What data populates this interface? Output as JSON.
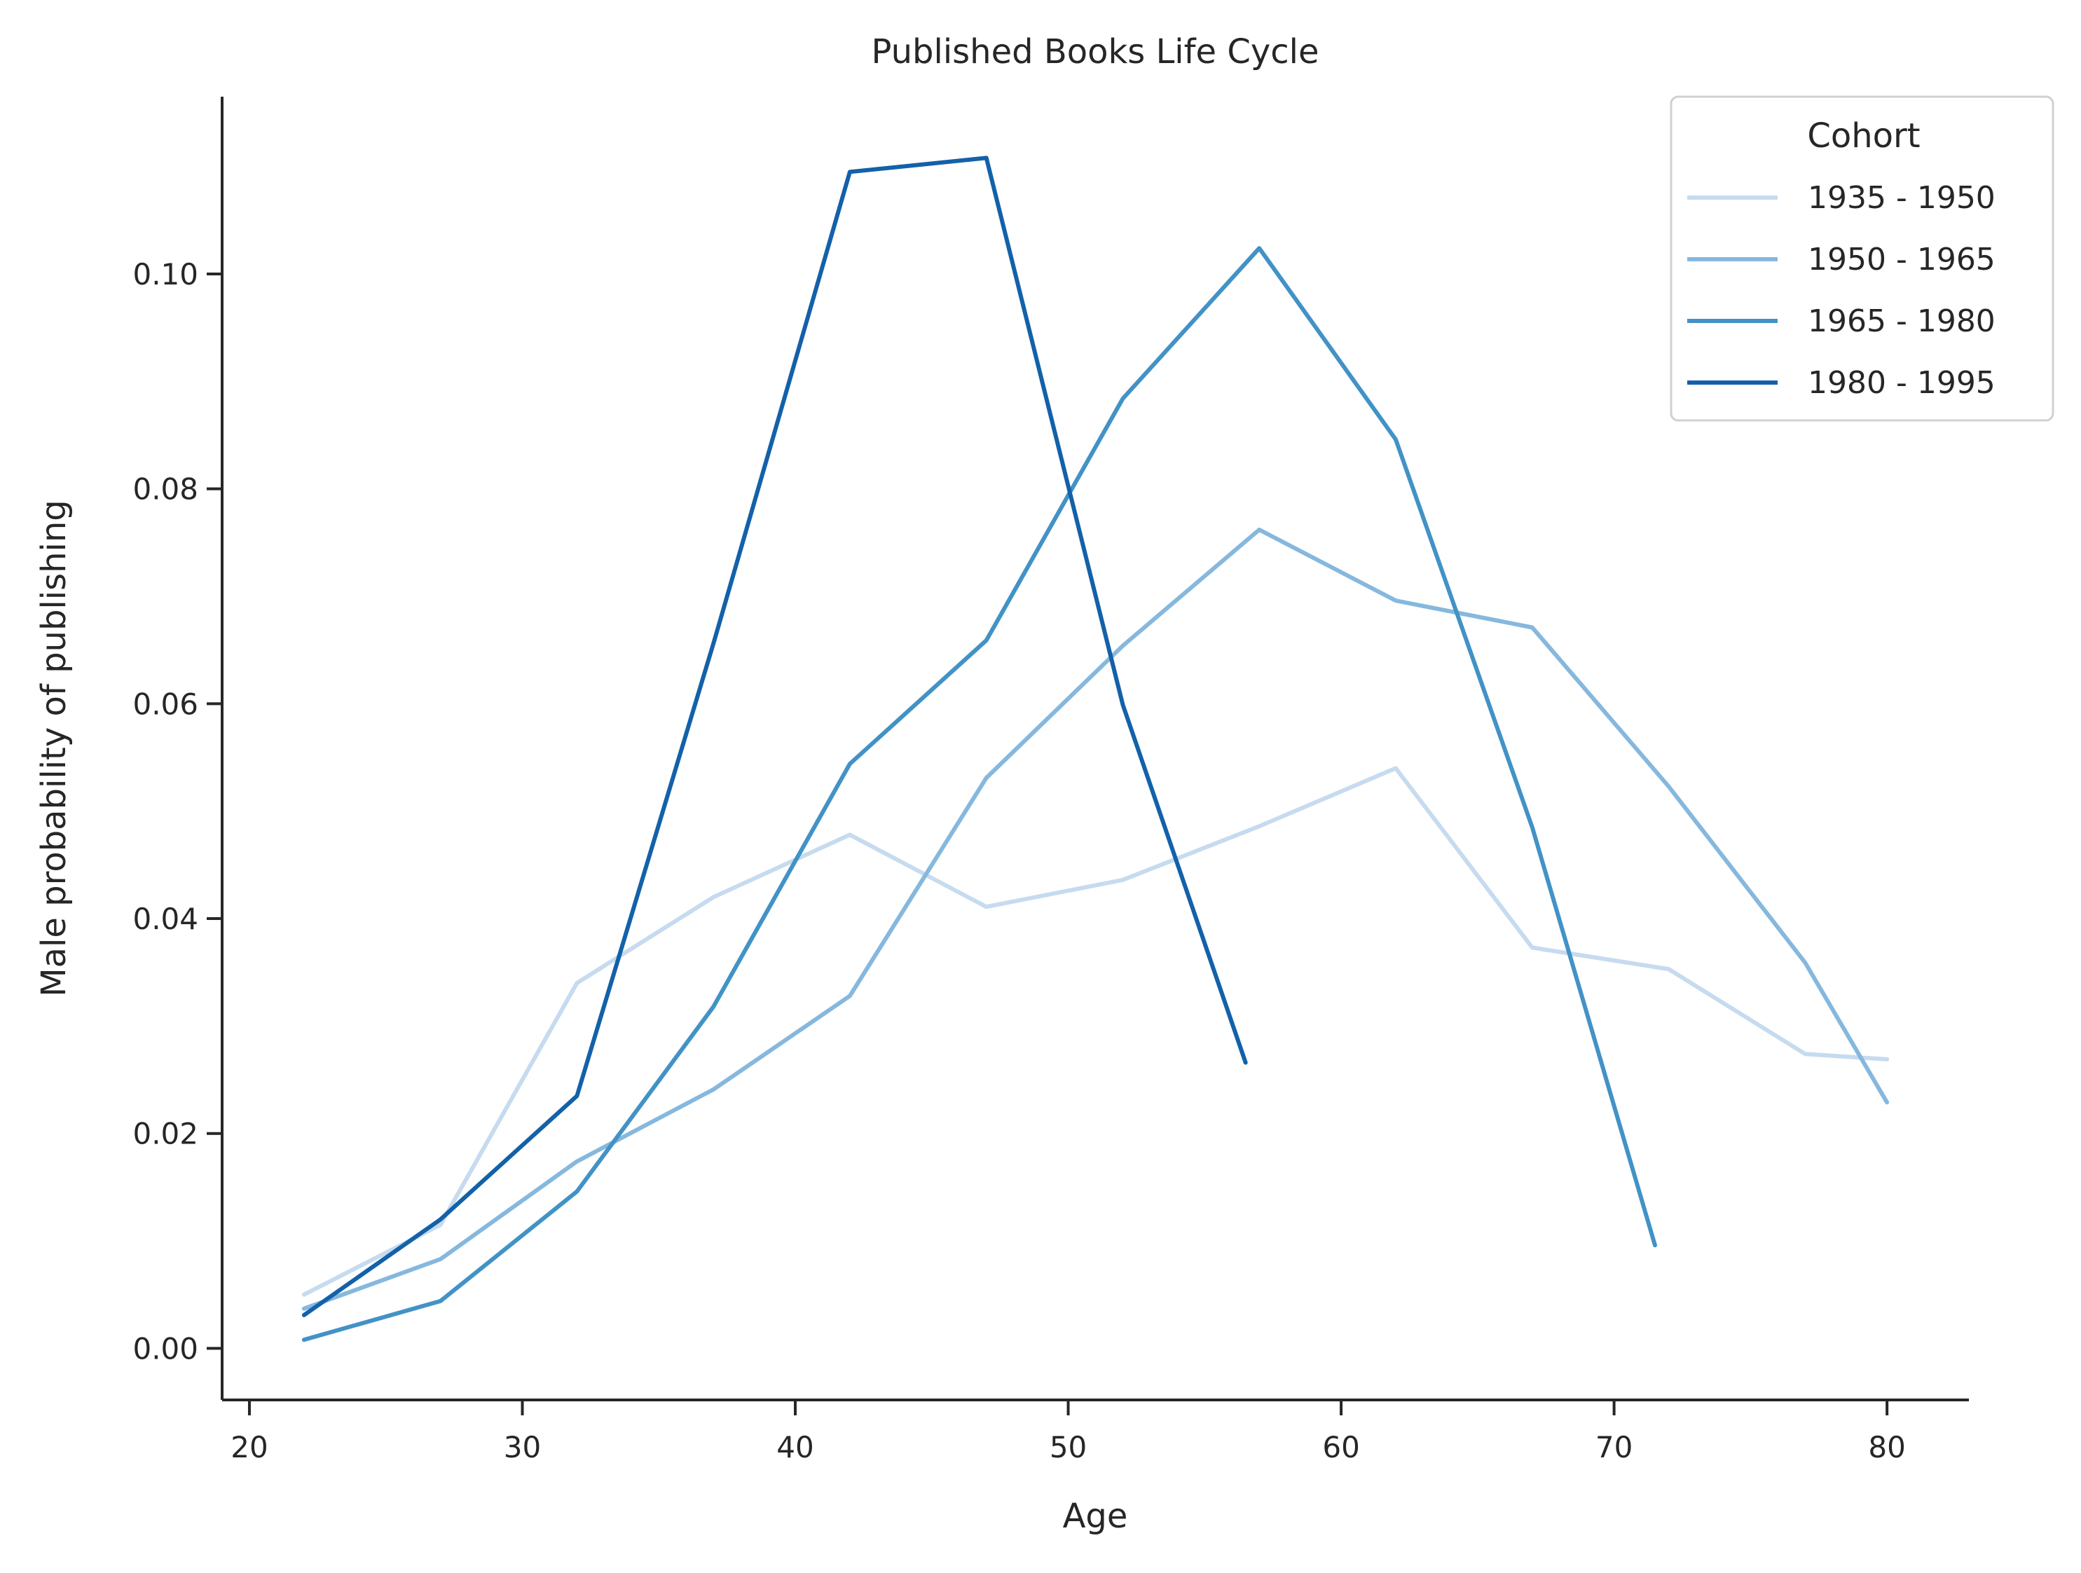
{
  "chart_data": {
    "type": "line",
    "title": "Published Books Life Cycle",
    "xlabel": "Age",
    "ylabel": "Male probability of publishing",
    "xlim": [
      19,
      83
    ],
    "ylim": [
      -0.0048,
      0.1165
    ],
    "xticks": [
      20,
      30,
      40,
      50,
      60,
      70,
      80
    ],
    "xtick_labels": [
      "20",
      "30",
      "40",
      "50",
      "60",
      "70",
      "80"
    ],
    "yticks": [
      0.0,
      0.02,
      0.04,
      0.06,
      0.08,
      0.1
    ],
    "ytick_labels": [
      "0.00",
      "0.02",
      "0.04",
      "0.06",
      "0.08",
      "0.10"
    ],
    "grid": false,
    "legend": {
      "title": "Cohort",
      "position": "top-right"
    },
    "series": [
      {
        "name": "1935 - 1950",
        "color": "#c6dbef",
        "x": [
          22,
          27,
          32,
          37,
          42,
          47,
          52,
          57,
          62,
          67,
          72,
          77,
          80
        ],
        "y": [
          0.005,
          0.0115,
          0.034,
          0.042,
          0.0478,
          0.0411,
          0.0436,
          0.0486,
          0.054,
          0.0373,
          0.0353,
          0.0274,
          0.0269
        ]
      },
      {
        "name": "1950 - 1965",
        "color": "#86b8de",
        "x": [
          22,
          27,
          32,
          37,
          42,
          47,
          52,
          57,
          62,
          67,
          72,
          77,
          80
        ],
        "y": [
          0.0037,
          0.0083,
          0.0174,
          0.0241,
          0.0328,
          0.0531,
          0.0654,
          0.0762,
          0.0696,
          0.0671,
          0.0523,
          0.0359,
          0.0229
        ]
      },
      {
        "name": "1965 - 1980",
        "color": "#4292c6",
        "x": [
          22,
          27,
          32,
          37,
          42,
          47,
          52,
          57,
          62,
          67,
          71.5
        ],
        "y": [
          0.0008,
          0.0044,
          0.0146,
          0.0318,
          0.0544,
          0.0659,
          0.0884,
          0.1024,
          0.0846,
          0.0485,
          0.0096
        ]
      },
      {
        "name": "1980 - 1995",
        "color": "#1361a9",
        "x": [
          22,
          27,
          32,
          37,
          42,
          47,
          52,
          56.5
        ],
        "y": [
          0.0031,
          0.012,
          0.0235,
          0.0656,
          0.1095,
          0.1108,
          0.0599,
          0.0266
        ]
      }
    ]
  }
}
